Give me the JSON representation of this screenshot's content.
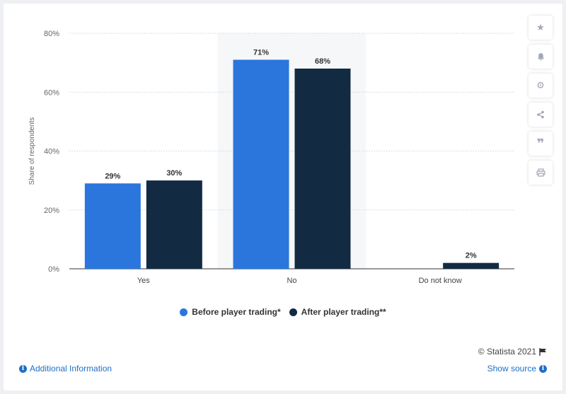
{
  "chart_data": {
    "type": "bar",
    "categories": [
      "Yes",
      "No",
      "Do not know"
    ],
    "series": [
      {
        "name": "Before player trading*",
        "values": [
          29,
          71,
          0
        ],
        "labels": [
          "29%",
          "71%",
          ""
        ]
      },
      {
        "name": "After player trading**",
        "values": [
          30,
          68,
          2
        ],
        "labels": [
          "30%",
          "68%",
          "2%"
        ]
      }
    ],
    "ylabel": "Share of respondents",
    "xlabel": "",
    "ylim": [
      0,
      80
    ],
    "yticks": [
      "0%",
      "20%",
      "40%",
      "60%",
      "80%"
    ],
    "highlighted_category": "No",
    "grid": true,
    "legend_position": "bottom"
  },
  "colors": {
    "series_1": "#2a76dd",
    "series_2": "#132a43",
    "highlight_band": "#f6f7f8"
  },
  "footer": {
    "credit": "© Statista 2021",
    "additional_info": "Additional Information",
    "show_source": "Show source"
  },
  "toolbar": {
    "icons": [
      "star-icon",
      "bell-icon",
      "gear-icon",
      "share-icon",
      "quote-icon",
      "print-icon"
    ]
  }
}
